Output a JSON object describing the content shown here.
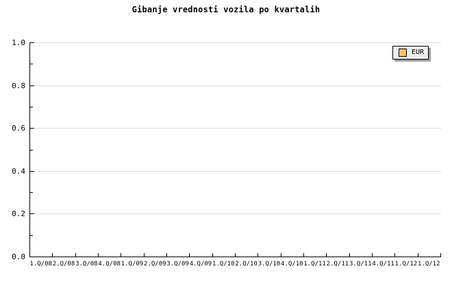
{
  "title": "Gibanje vrednosti vozila po kvartalih",
  "legend": {
    "label": "EUR",
    "swatch_color": "#f9c466",
    "background": "#ededed",
    "shadow_color": "#9e9e9e",
    "position": "top-right"
  },
  "axes": {
    "y_tick_labels": [
      "1.0",
      "0.8",
      "0.6",
      "0.4",
      "0.2",
      "0.0"
    ],
    "y_major_step": 0.2,
    "y_minor_step": 0.1,
    "x_tick_labels": [
      "1.Q/08",
      "2.Q/08",
      "3.Q/08",
      "4.Q/08",
      "1.Q/09",
      "2.Q/09",
      "3.Q/09",
      "4.Q/09",
      "1.Q/10",
      "2.Q/10",
      "3.Q/10",
      "4.Q/10",
      "1.Q/11",
      "2.Q/11",
      "3.Q/11",
      "4.Q/11",
      "1.Q/12",
      "1.Q/12"
    ]
  },
  "colors": {
    "background": "#ffffff",
    "axis": "#000000",
    "gridline": "#dcdcdc",
    "text": "#000000"
  },
  "chart_data": {
    "type": "line",
    "title": "Gibanje vrednosti vozila po kvartalih",
    "categories": [
      "1.Q/08",
      "2.Q/08",
      "3.Q/08",
      "4.Q/08",
      "1.Q/09",
      "2.Q/09",
      "3.Q/09",
      "4.Q/09",
      "1.Q/10",
      "2.Q/10",
      "3.Q/10",
      "4.Q/10",
      "1.Q/11",
      "2.Q/11",
      "3.Q/11",
      "4.Q/11",
      "1.Q/12",
      "1.Q/12"
    ],
    "series": [
      {
        "name": "EUR",
        "values": []
      }
    ],
    "xlabel": "",
    "ylabel": "",
    "ylim": [
      0.0,
      1.0
    ],
    "y_ticks": [
      0.0,
      0.2,
      0.4,
      0.6,
      0.8,
      1.0
    ],
    "grid": "horizontal-major",
    "legend_position": "top-right",
    "note": "empty plot - no data points rendered"
  }
}
